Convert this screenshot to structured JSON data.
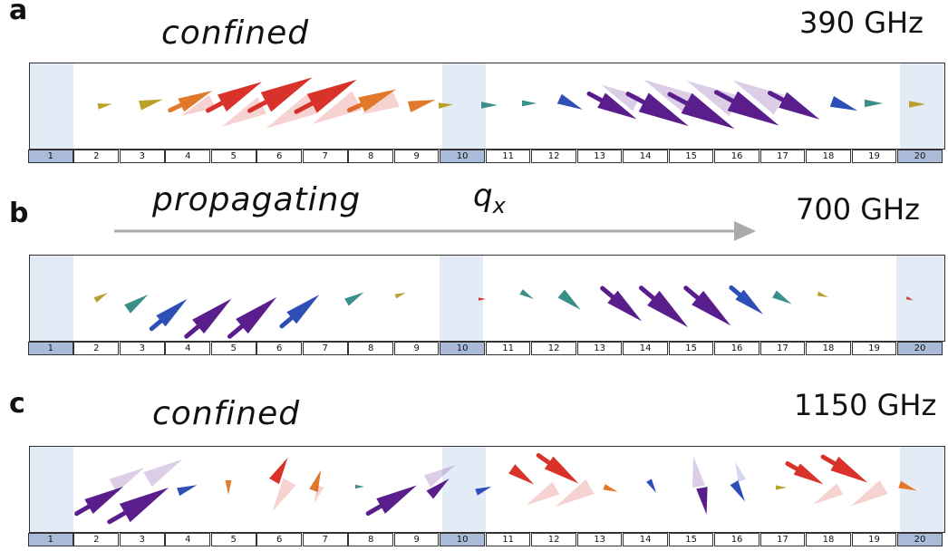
{
  "panels": [
    {
      "letter": "a",
      "title": "confined",
      "freq": "390 GHz"
    },
    {
      "letter": "b",
      "title": "propagating",
      "freq": "700 GHz",
      "wavevector": "q",
      "wavevector_sub": "x"
    },
    {
      "letter": "c",
      "title": "confined",
      "freq": "1150 GHz"
    }
  ],
  "cells": [
    "1",
    "2",
    "3",
    "4",
    "5",
    "6",
    "7",
    "8",
    "9",
    "10",
    "11",
    "12",
    "13",
    "14",
    "15",
    "16",
    "17",
    "18",
    "19",
    "20"
  ],
  "highlighted_cells": [
    "1",
    "10",
    "20"
  ],
  "colors": {
    "cone_red": "#d8322a",
    "cone_orange": "#e07a2a",
    "cone_purple": "#5a1e8c",
    "cone_blue": "#2d4fb6",
    "cone_teal": "#3a8f8a",
    "cone_yellow": "#b9a12a",
    "shade": "#e3ebf6",
    "cell_highlight": "#a9bbd9",
    "arrow_gray": "#aaaaaa"
  }
}
